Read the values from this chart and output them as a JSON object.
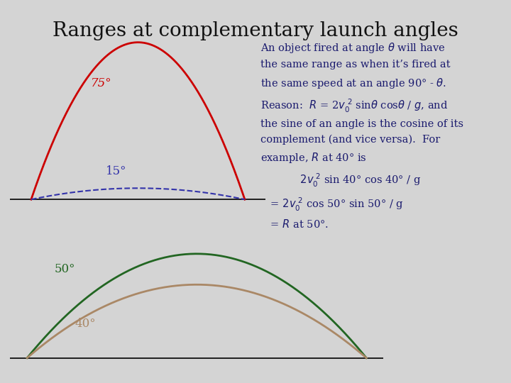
{
  "title": "Ranges at complementary launch angles",
  "title_fontsize": 20,
  "background_color": "#d4d4d4",
  "text_color_dark": "#1a1a6e",
  "text_color_title": "#111111",
  "trajectory_75_color": "#cc0000",
  "trajectory_15_color": "#3333aa",
  "trajectory_50_color": "#226622",
  "trajectory_40_color": "#aa8866",
  "label_75": "75°",
  "label_15": "15°",
  "label_50": "50°",
  "label_40": "40°",
  "label_fontsize": 12,
  "annotation_fontsize": 10.5
}
